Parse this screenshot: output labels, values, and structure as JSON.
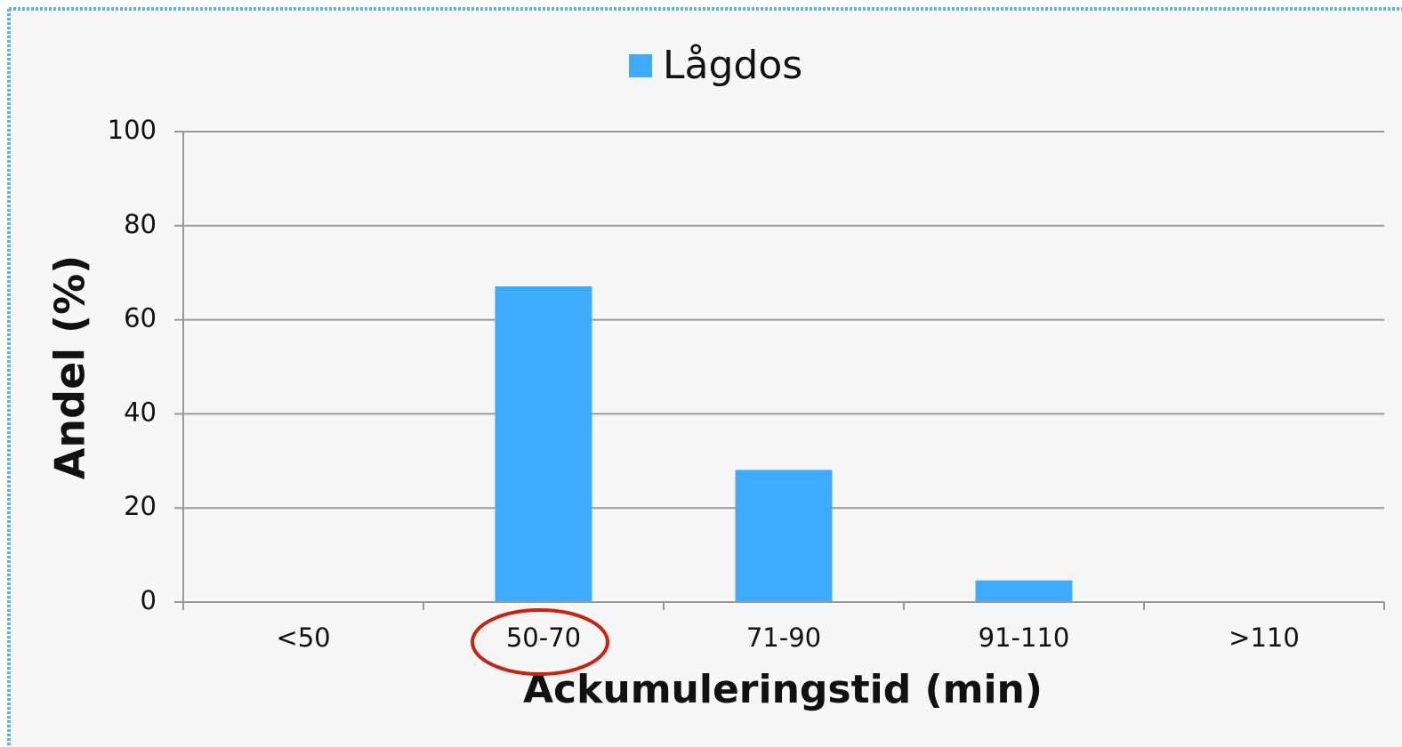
{
  "chart_data": {
    "type": "bar",
    "xlabel": "Ackumuleringstid (min)",
    "ylabel": "Andel (%)",
    "categories": [
      "<50",
      "50-70",
      "71-90",
      "91-110",
      ">110"
    ],
    "series": [
      {
        "name": "Lågdos",
        "color": "#3fabff",
        "values": [
          0,
          67,
          28,
          4.5,
          0
        ]
      }
    ],
    "ylim": [
      0,
      100
    ],
    "yticks": [
      0,
      20,
      40,
      60,
      80,
      100
    ],
    "grid": true,
    "legend": "top"
  }
}
